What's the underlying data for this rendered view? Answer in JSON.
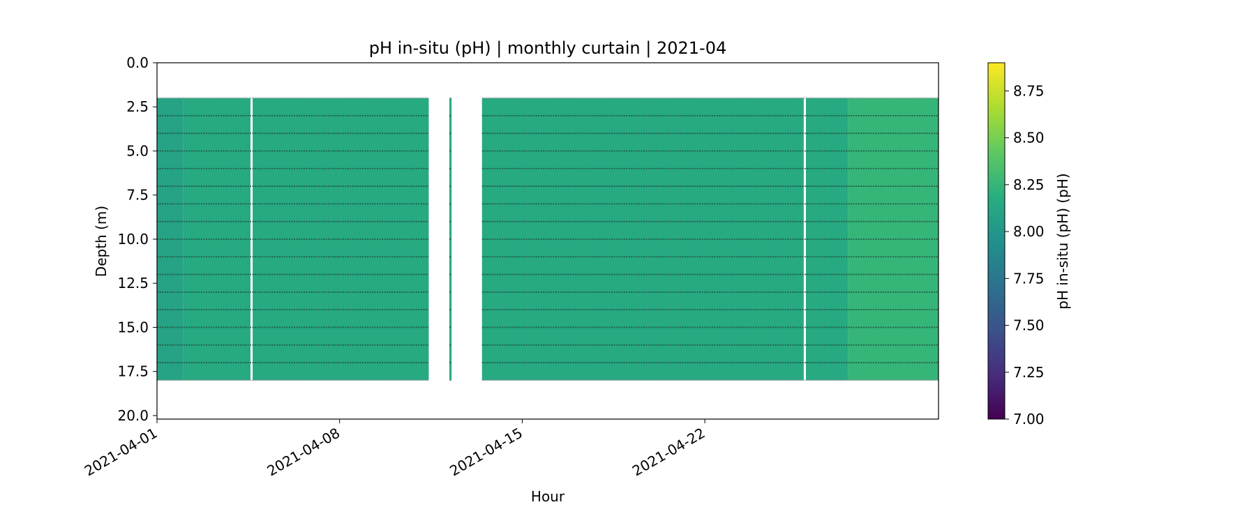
{
  "chart_data": {
    "type": "heatmap",
    "title": "pH in-situ (pH) | monthly curtain | 2021-04",
    "xlabel": "Hour",
    "ylabel": "Depth (m)",
    "x_range": [
      "2021-04-01",
      "2021-04-30T23:00"
    ],
    "x_ticks": [
      "2021-04-01",
      "2021-04-08",
      "2021-04-15",
      "2021-04-22"
    ],
    "y_range": [
      0,
      20.2
    ],
    "y_inverted": true,
    "y_ticks": [
      "0.0",
      "2.5",
      "5.0",
      "7.5",
      "10.0",
      "12.5",
      "15.0",
      "17.5",
      "20.0"
    ],
    "colormap": "viridis",
    "colorbar": {
      "label": "pH in-situ (pH) (pH)",
      "range": [
        7.0,
        8.9
      ],
      "ticks": [
        "7.00",
        "7.25",
        "7.50",
        "7.75",
        "8.00",
        "8.25",
        "8.50",
        "8.75"
      ]
    },
    "depth_levels_m": [
      2,
      3,
      4,
      5,
      6,
      7,
      8,
      9,
      10,
      11,
      12,
      13,
      14,
      15,
      16,
      17,
      18
    ],
    "data_periods": [
      {
        "start": "2021-04-01",
        "end": "2021-04-11T10:00"
      },
      {
        "start": "2021-04-12T05:00",
        "end": "2021-04-12T07:00"
      },
      {
        "start": "2021-04-13T11:00",
        "end": "2021-04-30T23:00"
      }
    ],
    "gaps": [
      {
        "start": "2021-04-04T14:00",
        "end": "2021-04-04T16:00"
      },
      {
        "start": "2021-04-25T19:00",
        "end": "2021-04-25T21:00"
      }
    ],
    "ph_by_period": [
      {
        "start": "2021-04-01",
        "end": "2021-04-02",
        "ph": 8.1
      },
      {
        "start": "2021-04-02",
        "end": "2021-04-27T12:00",
        "ph": 8.15
      },
      {
        "start": "2021-04-27T12:00",
        "end": "2021-04-30T23:00",
        "ph": 8.25
      }
    ],
    "grid": false,
    "legend": "none"
  }
}
